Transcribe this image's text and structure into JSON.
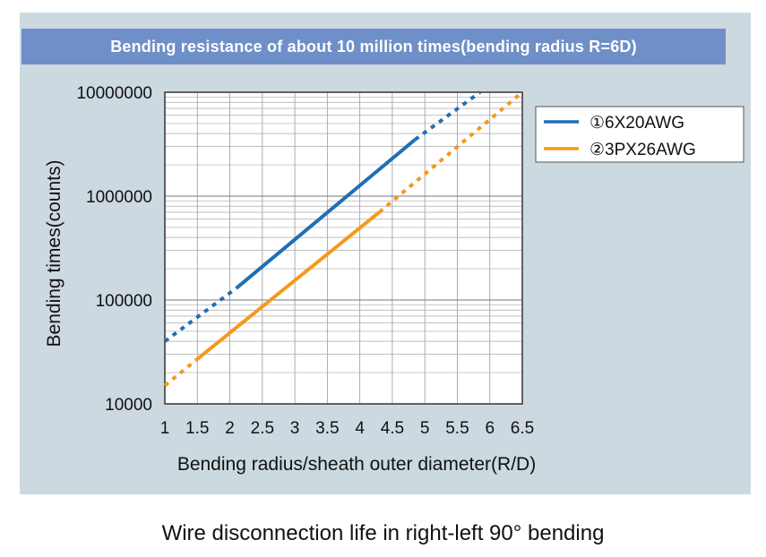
{
  "title": "Bending resistance of about 10 million times(bending radius R=6D)",
  "caption": "Wire disconnection life in right-left 90° bending",
  "chart_data": {
    "type": "line",
    "title": "Bending resistance of about 10 million times(bending radius R=6D)",
    "xlabel": "Bending radius/sheath outer diameter(R/D)",
    "ylabel": "Bending times(counts)",
    "xlim": [
      1,
      6.5
    ],
    "ylim": [
      10000,
      10000000
    ],
    "yscale": "log",
    "grid": true,
    "legend_position": "top-right, outside plot",
    "x_ticks": [
      "1",
      "1.5",
      "2",
      "2.5",
      "3",
      "3.5",
      "4",
      "4.5",
      "5",
      "5.5",
      "6",
      "6.5"
    ],
    "y_ticks": [
      "10000",
      "100000",
      "1000000",
      "10000000"
    ],
    "series": [
      {
        "name": "①6X20AWG",
        "color": "#1f6fb5",
        "points": [
          [
            1,
            40000
          ],
          [
            2.1,
            130000
          ],
          [
            4.85,
            3500000
          ],
          [
            5.85,
            10000000
          ]
        ],
        "solid_range": [
          2.1,
          4.85
        ]
      },
      {
        "name": "②3PX26AWG",
        "color": "#f39a1d",
        "points": [
          [
            1,
            15000
          ],
          [
            1.5,
            27000
          ],
          [
            4.3,
            700000
          ],
          [
            6.5,
            10000000
          ]
        ],
        "solid_range": [
          1.5,
          4.3
        ]
      }
    ]
  }
}
